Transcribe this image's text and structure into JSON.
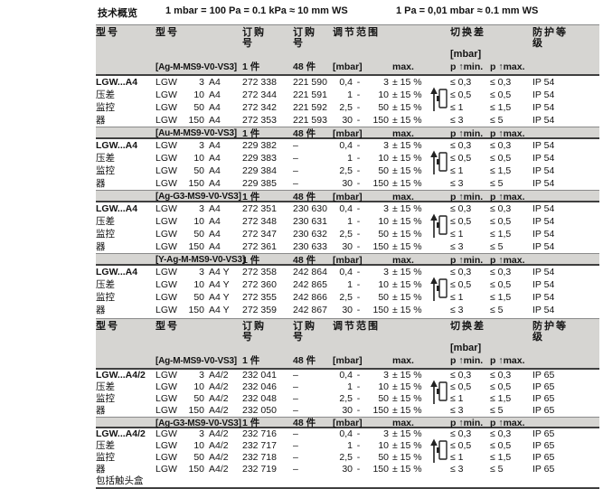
{
  "colors": {
    "header_bg": "#d6d5d2",
    "rule": "#3f3f3f",
    "text": "#141414"
  },
  "icon": {
    "name": "pressure-rise-switch-icon"
  },
  "top": {
    "title": "技术概览",
    "conv1": "1 mbar = 100 Pa = 0.1 kPa ≈ 10 mm WS",
    "conv2": "1 Pa = 0,01 mbar ≈ 0.1 mm WS"
  },
  "header": {
    "col_model_group": "型号",
    "col_model": "型号",
    "col_order": "订购号",
    "col_range": "调节范围",
    "col_diff": "切换差",
    "col_diff_unit": "[mbar]",
    "col_protection": "防护等级",
    "qty1": "1 件",
    "qty48": "48 件",
    "mbar": "[mbar]",
    "max": "max.",
    "pmin": "p ↑min.",
    "pmax": "p ↑max.",
    "range_sep": "-"
  },
  "tables": [
    {
      "group": {
        "name": "LGW...A4",
        "desc": [
          "压差",
          "监控",
          "器"
        ]
      },
      "blocks": [
        {
          "variant": "[Ag-M-MS9-V0-VS3]",
          "rows": [
            {
              "model": [
                "LGW",
                "3",
                "A4"
              ],
              "o1": "272 338",
              "o2": "221 590",
              "rf": "0,4",
              "rt": "3",
              "max": "± 15 %",
              "pmin": "≤ 0,3",
              "pmax": "≤ 0,3",
              "ip": "IP 54"
            },
            {
              "model": [
                "LGW",
                "10",
                "A4"
              ],
              "o1": "272 344",
              "o2": "221 591",
              "rf": "1",
              "rt": "10",
              "max": "± 15 %",
              "pmin": "≤ 0,5",
              "pmax": "≤ 0,5",
              "ip": "IP 54"
            },
            {
              "model": [
                "LGW",
                "50",
                "A4"
              ],
              "o1": "272 342",
              "o2": "221 592",
              "rf": "2,5",
              "rt": "50",
              "max": "± 15 %",
              "pmin": "≤ 1",
              "pmax": "≤ 1,5",
              "ip": "IP 54"
            },
            {
              "model": [
                "LGW",
                "150",
                "A4"
              ],
              "o1": "272 353",
              "o2": "221 593",
              "rf": "30",
              "rt": "150",
              "max": "± 15 %",
              "pmin": "≤ 3",
              "pmax": "≤ 5",
              "ip": "IP 54"
            }
          ]
        },
        {
          "variant": "[Au-M-MS9-V0-VS3]",
          "rows": [
            {
              "model": [
                "LGW",
                "3",
                "A4"
              ],
              "o1": "229 382",
              "o2": "–",
              "rf": "0,4",
              "rt": "3",
              "max": "± 15 %",
              "pmin": "≤ 0,3",
              "pmax": "≤ 0,3",
              "ip": "IP 54"
            },
            {
              "model": [
                "LGW",
                "10",
                "A4"
              ],
              "o1": "229 383",
              "o2": "–",
              "rf": "1",
              "rt": "10",
              "max": "± 15 %",
              "pmin": "≤ 0,5",
              "pmax": "≤ 0,5",
              "ip": "IP 54"
            },
            {
              "model": [
                "LGW",
                "50",
                "A4"
              ],
              "o1": "229 384",
              "o2": "–",
              "rf": "2,5",
              "rt": "50",
              "max": "± 15 %",
              "pmin": "≤ 1",
              "pmax": "≤ 1,5",
              "ip": "IP 54"
            },
            {
              "model": [
                "LGW",
                "150",
                "A4"
              ],
              "o1": "229 385",
              "o2": "–",
              "rf": "30",
              "rt": "150",
              "max": "± 15 %",
              "pmin": "≤ 3",
              "pmax": "≤ 5",
              "ip": "IP 54"
            }
          ]
        },
        {
          "variant": "[Ag-G3-MS9-V0-VS3]",
          "rows": [
            {
              "model": [
                "LGW",
                "3",
                "A4"
              ],
              "o1": "272 351",
              "o2": "230 630",
              "rf": "0,4",
              "rt": "3",
              "max": "± 15 %",
              "pmin": "≤ 0,3",
              "pmax": "≤ 0,3",
              "ip": "IP 54"
            },
            {
              "model": [
                "LGW",
                "10",
                "A4"
              ],
              "o1": "272 348",
              "o2": "230 631",
              "rf": "1",
              "rt": "10",
              "max": "± 15 %",
              "pmin": "≤ 0,5",
              "pmax": "≤ 0,5",
              "ip": "IP 54"
            },
            {
              "model": [
                "LGW",
                "50",
                "A4"
              ],
              "o1": "272 347",
              "o2": "230 632",
              "rf": "2,5",
              "rt": "50",
              "max": "± 15 %",
              "pmin": "≤ 1",
              "pmax": "≤ 1,5",
              "ip": "IP 54"
            },
            {
              "model": [
                "LGW",
                "150",
                "A4"
              ],
              "o1": "272 361",
              "o2": "230 633",
              "rf": "30",
              "rt": "150",
              "max": "± 15 %",
              "pmin": "≤ 3",
              "pmax": "≤ 5",
              "ip": "IP 54"
            }
          ]
        },
        {
          "variant": "[Y-Ag-M-MS9-V0-VS3]",
          "rows": [
            {
              "model": [
                "LGW",
                "3",
                "A4 Y"
              ],
              "o1": "272 358",
              "o2": "242 864",
              "rf": "0,4",
              "rt": "3",
              "max": "± 15 %",
              "pmin": "≤ 0,3",
              "pmax": "≤ 0,3",
              "ip": "IP 54"
            },
            {
              "model": [
                "LGW",
                "10",
                "A4 Y"
              ],
              "o1": "272 360",
              "o2": "242 865",
              "rf": "1",
              "rt": "10",
              "max": "± 15 %",
              "pmin": "≤ 0,5",
              "pmax": "≤ 0,5",
              "ip": "IP 54"
            },
            {
              "model": [
                "LGW",
                "50",
                "A4 Y"
              ],
              "o1": "272 355",
              "o2": "242 866",
              "rf": "2,5",
              "rt": "50",
              "max": "± 15 %",
              "pmin": "≤ 1",
              "pmax": "≤ 1,5",
              "ip": "IP 54"
            },
            {
              "model": [
                "LGW",
                "150",
                "A4 Y"
              ],
              "o1": "272 359",
              "o2": "242 867",
              "rf": "30",
              "rt": "150",
              "max": "± 15 %",
              "pmin": "≤ 3",
              "pmax": "≤ 5",
              "ip": "IP 54"
            }
          ]
        }
      ]
    },
    {
      "group": {
        "name": "LGW...A4/2",
        "desc": [
          "压差",
          "监控",
          "器"
        ]
      },
      "footnote": "包括触头盒",
      "blocks": [
        {
          "variant": "[Ag-M-MS9-V0-VS3]",
          "rows": [
            {
              "model": [
                "LGW",
                "3",
                "A4/2"
              ],
              "o1": "232 041",
              "o2": "–",
              "rf": "0,4",
              "rt": "3",
              "max": "± 15 %",
              "pmin": "≤ 0,3",
              "pmax": "≤ 0,3",
              "ip": "IP 65"
            },
            {
              "model": [
                "LGW",
                "10",
                "A4/2"
              ],
              "o1": "232 046",
              "o2": "–",
              "rf": "1",
              "rt": "10",
              "max": "± 15 %",
              "pmin": "≤ 0,5",
              "pmax": "≤ 0,5",
              "ip": "IP 65"
            },
            {
              "model": [
                "LGW",
                "50",
                "A4/2"
              ],
              "o1": "232 048",
              "o2": "–",
              "rf": "2,5",
              "rt": "50",
              "max": "± 15 %",
              "pmin": "≤ 1",
              "pmax": "≤ 1,5",
              "ip": "IP 65"
            },
            {
              "model": [
                "LGW",
                "150",
                "A4/2"
              ],
              "o1": "232 050",
              "o2": "–",
              "rf": "30",
              "rt": "150",
              "max": "± 15 %",
              "pmin": "≤ 3",
              "pmax": "≤ 5",
              "ip": "IP 65"
            }
          ]
        },
        {
          "variant": "[Ag-G3-MS9-V0-VS3]",
          "rows": [
            {
              "model": [
                "LGW",
                "3",
                "A4/2"
              ],
              "o1": "232 716",
              "o2": "–",
              "rf": "0,4",
              "rt": "3",
              "max": "± 15 %",
              "pmin": "≤ 0,3",
              "pmax": "≤ 0,3",
              "ip": "IP 65"
            },
            {
              "model": [
                "LGW",
                "10",
                "A4/2"
              ],
              "o1": "232 717",
              "o2": "–",
              "rf": "1",
              "rt": "10",
              "max": "± 15 %",
              "pmin": "≤ 0,5",
              "pmax": "≤ 0,5",
              "ip": "IP 65"
            },
            {
              "model": [
                "LGW",
                "50",
                "A4/2"
              ],
              "o1": "232 718",
              "o2": "–",
              "rf": "2,5",
              "rt": "50",
              "max": "± 15 %",
              "pmin": "≤ 1",
              "pmax": "≤ 1,5",
              "ip": "IP 65"
            },
            {
              "model": [
                "LGW",
                "150",
                "A4/2"
              ],
              "o1": "232 719",
              "o2": "–",
              "rf": "30",
              "rt": "150",
              "max": "± 15 %",
              "pmin": "≤ 3",
              "pmax": "≤ 5",
              "ip": "IP 65"
            }
          ]
        }
      ]
    }
  ]
}
